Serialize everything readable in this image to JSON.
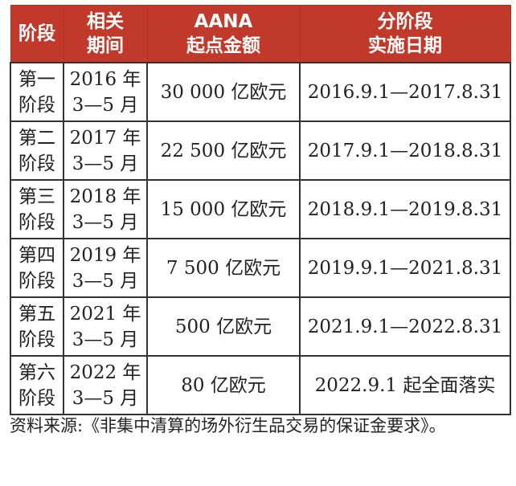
{
  "table": {
    "headers": [
      "阶段",
      "相关\n期间",
      "AANA\n起点金额",
      "分阶段\n实施日期"
    ],
    "rows": [
      [
        "第一\n阶段",
        "2016 年\n3—5 月",
        "30 000 亿欧元",
        "2016.9.1—2017.8.31"
      ],
      [
        "第二\n阶段",
        "2017 年\n3—5 月",
        "22 500 亿欧元",
        "2017.9.1—2018.8.31"
      ],
      [
        "第三\n阶段",
        "2018 年\n3—5 月",
        "15 000 亿欧元",
        "2018.9.1—2019.8.31"
      ],
      [
        "第四\n阶段",
        "2019 年\n3—5 月",
        "7 500 亿欧元",
        "2019.9.1—2021.8.31"
      ],
      [
        "第五\n阶段",
        "2021 年\n3—5 月",
        "500 亿欧元",
        "2021.9.1—2022.8.31"
      ],
      [
        "第六\n阶段",
        "2022 年\n3—5 月",
        "80 亿欧元",
        "2022.9.1 起全面落实"
      ]
    ]
  },
  "source": "资料来源:《非集中清算的场外衍生品交易的保证金要求》。",
  "colors": {
    "header_bg": "#c0392b",
    "header_text": "#ffffff",
    "border": "#333333"
  }
}
